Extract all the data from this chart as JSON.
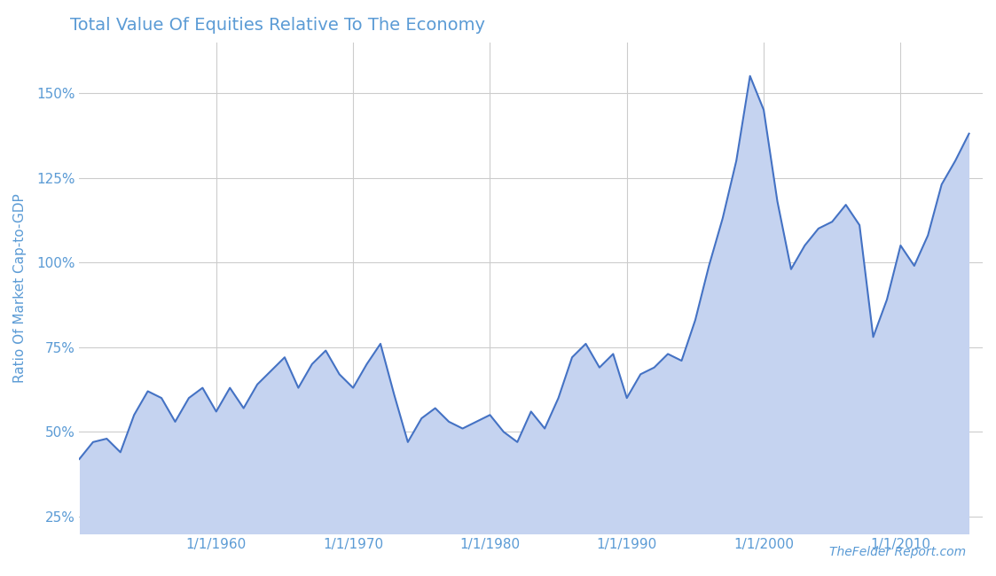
{
  "title": "Total Value Of Equities Relative To The Economy",
  "ylabel": "Ratio Of Market Cap-to-GDP",
  "watermark": "TheFelder Report.com",
  "title_color": "#5b9bd5",
  "ylabel_color": "#5b9bd5",
  "line_color": "#4472c4",
  "fill_color": "#c5d3f0",
  "grid_color": "#cccccc",
  "background_color": "#ffffff",
  "watermark_color": "#5b9bd5",
  "yticks": [
    0.25,
    0.5,
    0.75,
    1.0,
    1.25,
    1.5
  ],
  "ytick_labels": [
    "25%",
    "50%",
    "75%",
    "100%",
    "125%",
    "150%"
  ],
  "ylim": [
    0.2,
    1.65
  ],
  "xtick_labels": [
    "1/1/1960",
    "1/1/1970",
    "1/1/1980",
    "1/1/1990",
    "1/1/2000",
    "1/1/2010"
  ],
  "data": {
    "years": [
      1950,
      1951,
      1952,
      1953,
      1954,
      1955,
      1956,
      1957,
      1958,
      1959,
      1960,
      1961,
      1962,
      1963,
      1964,
      1965,
      1966,
      1967,
      1968,
      1969,
      1970,
      1971,
      1972,
      1973,
      1974,
      1975,
      1976,
      1977,
      1978,
      1979,
      1980,
      1981,
      1982,
      1983,
      1984,
      1985,
      1986,
      1987,
      1988,
      1989,
      1990,
      1991,
      1992,
      1993,
      1994,
      1995,
      1996,
      1997,
      1998,
      1999,
      2000,
      2001,
      2002,
      2003,
      2004,
      2005,
      2006,
      2007,
      2008,
      2009,
      2010,
      2011,
      2012,
      2013,
      2014,
      2015
    ],
    "values": [
      0.42,
      0.47,
      0.48,
      0.44,
      0.55,
      0.62,
      0.6,
      0.53,
      0.6,
      0.63,
      0.56,
      0.63,
      0.57,
      0.64,
      0.68,
      0.72,
      0.63,
      0.7,
      0.74,
      0.67,
      0.63,
      0.7,
      0.76,
      0.61,
      0.47,
      0.54,
      0.57,
      0.53,
      0.51,
      0.53,
      0.55,
      0.5,
      0.47,
      0.56,
      0.51,
      0.6,
      0.72,
      0.76,
      0.69,
      0.73,
      0.6,
      0.67,
      0.69,
      0.73,
      0.71,
      0.83,
      0.99,
      1.13,
      1.3,
      1.55,
      1.45,
      1.18,
      0.98,
      1.05,
      1.1,
      1.12,
      1.17,
      1.11,
      0.78,
      0.89,
      1.05,
      0.99,
      1.08,
      1.23,
      1.3,
      1.38
    ]
  }
}
